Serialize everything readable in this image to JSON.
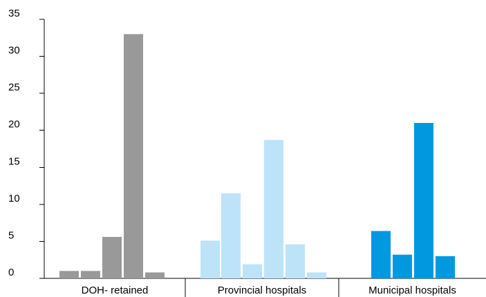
{
  "chart_data": {
    "type": "bar",
    "title": "",
    "xlabel": "",
    "ylabel": "",
    "ylim": [
      0,
      35
    ],
    "y_ticks": [
      "0",
      "5",
      "10",
      "15",
      "20",
      "25",
      "30",
      "35"
    ],
    "grid": false,
    "legend": "none",
    "groups": [
      {
        "label": "DOH- retained",
        "color": "#999999",
        "values": [
          1.0,
          1.0,
          5.6,
          33.0,
          0.8
        ]
      },
      {
        "label": "Provincial hospitals",
        "color": "#bde3f8",
        "values": [
          5.1,
          11.5,
          1.9,
          18.7,
          4.6,
          0.8
        ]
      },
      {
        "label": "Municipal hospitals",
        "color": "#0099e0",
        "values": [
          6.4,
          3.2,
          21.0,
          3.0
        ]
      }
    ]
  }
}
